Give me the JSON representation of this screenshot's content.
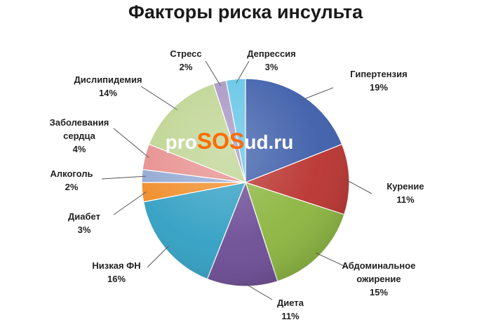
{
  "chart_data": {
    "type": "pie",
    "title": "Факторы риска инсульта",
    "slices": [
      {
        "label": [
          "Гипертензия"
        ],
        "value_label": "19%",
        "value": 19,
        "color": "#3a5ba8"
      },
      {
        "label": [
          "Курение"
        ],
        "value_label": "11%",
        "value": 11,
        "color": "#b8302c"
      },
      {
        "label": [
          "Абдоминальное",
          "ожирение"
        ],
        "value_label": "15%",
        "value": 15,
        "color": "#8ab43c"
      },
      {
        "label": [
          "Диета"
        ],
        "value_label": "11%",
        "value": 11,
        "color": "#6a4a94"
      },
      {
        "label": [
          "Низкая ФН"
        ],
        "value_label": "16%",
        "value": 16,
        "color": "#2e9ec2"
      },
      {
        "label": [
          "Диабет"
        ],
        "value_label": "3%",
        "value": 3,
        "color": "#f08a24"
      },
      {
        "label": [
          "Алкоголь"
        ],
        "value_label": "2%",
        "value": 2,
        "color": "#8fa6d2"
      },
      {
        "label": [
          "Заболевания",
          "сердца"
        ],
        "value_label": "4%",
        "value": 4,
        "color": "#e68c8a"
      },
      {
        "label": [
          "Дислипидемия"
        ],
        "value_label": "14%",
        "value": 14,
        "color": "#bcd38e"
      },
      {
        "label": [
          "Стресс"
        ],
        "value_label": "2%",
        "value": 2,
        "color": "#a593c2"
      },
      {
        "label": [
          "Депрессия"
        ],
        "value_label": "3%",
        "value": 3,
        "color": "#5fc3e6"
      }
    ]
  },
  "watermark": {
    "part1": "pro",
    "part2": "SOS",
    "part3": "ud.ru",
    "color_main": "#ffffff",
    "color_accent": "#ff6a00"
  }
}
